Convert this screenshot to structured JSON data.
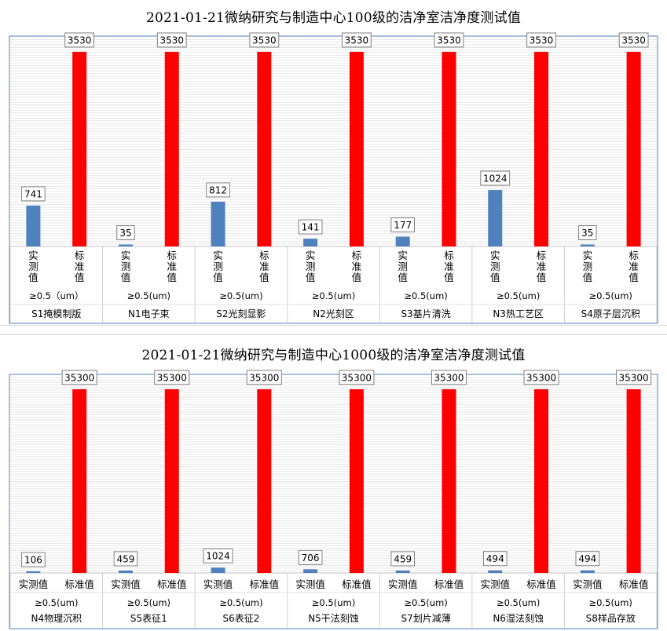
{
  "chart_data": [
    {
      "type": "bar",
      "title": "2021-01-21微纳研究与制造中心100级的洁净室洁净度测试值",
      "ylim": [
        0,
        3800
      ],
      "grid": true,
      "series_labels": [
        "实测值",
        "标准值"
      ],
      "series_label_vertical": true,
      "particle_size_label": [
        "≥0.5（um）",
        "≥0.5(um)",
        "≥0.5(um)",
        "≥0.5(um)",
        "≥0.5(um)",
        "≥0.5(um)",
        "≥0.5(um)"
      ],
      "categories": [
        "S1掩模制版",
        "N1电子束",
        "S2光刻显影",
        "N2光刻区",
        "S3基片清洗",
        "N3热工艺区",
        "S4原子层沉积"
      ],
      "series": [
        {
          "values": [
            741,
            35,
            812,
            141,
            177,
            1024,
            35
          ],
          "color": "#4f81bd"
        },
        {
          "values": [
            3530,
            3530,
            3530,
            3530,
            3530,
            3530,
            3530
          ],
          "color": "#ff0000"
        }
      ]
    },
    {
      "type": "bar",
      "title": "2021-01-21微纳研究与制造中心1000级的洁净室洁净度测试值",
      "ylim": [
        0,
        38000
      ],
      "grid": true,
      "series_labels": [
        "实测值",
        "标准值"
      ],
      "series_label_vertical": false,
      "particle_size_label": [
        "≥0.5(um)",
        "≥0.5(um)",
        "≥0.5(um)",
        "≥0.5(um)",
        "≥0.5(um)",
        "≥0.5(um)",
        "≥0.5(um)"
      ],
      "categories": [
        "N4物理沉积",
        "S5表征1",
        "S6表征2",
        "N5干法刻蚀",
        "S7划片减薄",
        "N6湿法刻蚀",
        "S8样品存放"
      ],
      "series": [
        {
          "values": [
            106,
            459,
            1024,
            706,
            459,
            494,
            494
          ],
          "color": "#4f81bd"
        },
        {
          "values": [
            35300,
            35300,
            35300,
            35300,
            35300,
            35300,
            35300
          ],
          "color": "#ff0000"
        }
      ]
    }
  ]
}
